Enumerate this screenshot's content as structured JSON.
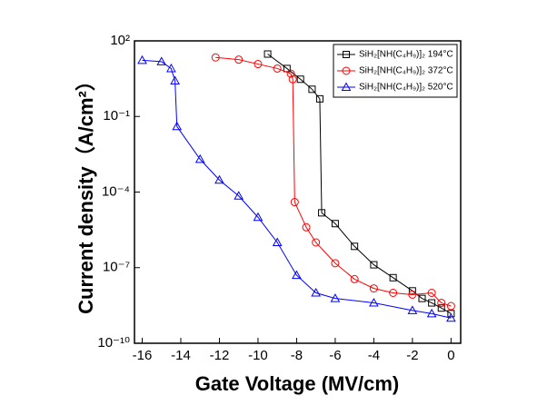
{
  "chart_data": {
    "type": "line",
    "x_label": "Gate Voltage (MV/cm)",
    "y_label": "Current density（A/cm²）",
    "xlim": [
      -16.4,
      0.5
    ],
    "xticks": [
      -16,
      -14,
      -12,
      -10,
      -8,
      -6,
      -4,
      -2,
      0
    ],
    "ylim": [
      1e-10,
      100
    ],
    "y_log": true,
    "yticks": [
      {
        "value": 100,
        "label": "10²"
      },
      {
        "value": 0.1,
        "label": "10⁻¹"
      },
      {
        "value": 0.0001,
        "label": "10⁻⁴"
      },
      {
        "value": 1e-07,
        "label": "10⁻⁷"
      },
      {
        "value": 1e-10,
        "label": "10⁻¹⁰"
      }
    ],
    "legend_position": "upper right",
    "series": [
      {
        "name": "SiH₂[NH(C₄H₉)]₂ 194°C",
        "color": "#000000",
        "marker": "square",
        "x": [
          -9.5,
          -8.5,
          -7.8,
          -7.2,
          -6.8,
          -6.7,
          -6,
          -5,
          -4,
          -3,
          -2,
          -1.5,
          -1,
          -0.5,
          0
        ],
        "values": [
          30,
          8,
          3,
          1.2,
          0.5,
          1.5e-05,
          5.6e-06,
          7e-07,
          1.3e-07,
          4e-08,
          1.2e-08,
          6e-09,
          4e-09,
          2.5e-09,
          1.5e-09
        ]
      },
      {
        "name": "SiH₂[NH(C₄H₉)]₂ 372°C",
        "color": "#ff0000",
        "marker": "circle",
        "x": [
          -12.2,
          -11,
          -10,
          -9,
          -8.3,
          -8.2,
          -8.1,
          -7.5,
          -7,
          -6,
          -5,
          -4,
          -3,
          -2,
          -1,
          -0.5,
          0
        ],
        "values": [
          22,
          18,
          12,
          8,
          5,
          3,
          4e-05,
          4e-06,
          1e-06,
          1.5e-07,
          3.5e-08,
          1.5e-08,
          1e-08,
          8.5e-09,
          1e-08,
          4e-09,
          3e-09
        ]
      },
      {
        "name": "SiH₂[NH(C₄H₉)]₂ 520°C",
        "color": "#0000ff",
        "marker": "triangle",
        "x": [
          -16,
          -15,
          -14.5,
          -14.3,
          -14.2,
          -13,
          -12,
          -11,
          -10,
          -9,
          -8,
          -7,
          -6,
          -4,
          -2,
          -1,
          0
        ],
        "values": [
          17,
          15,
          8,
          2.6,
          0.04,
          0.002,
          0.0003,
          7e-05,
          1e-05,
          1e-06,
          5e-08,
          1e-08,
          6e-09,
          4e-09,
          2e-09,
          1.5e-09,
          1e-09
        ]
      }
    ]
  }
}
